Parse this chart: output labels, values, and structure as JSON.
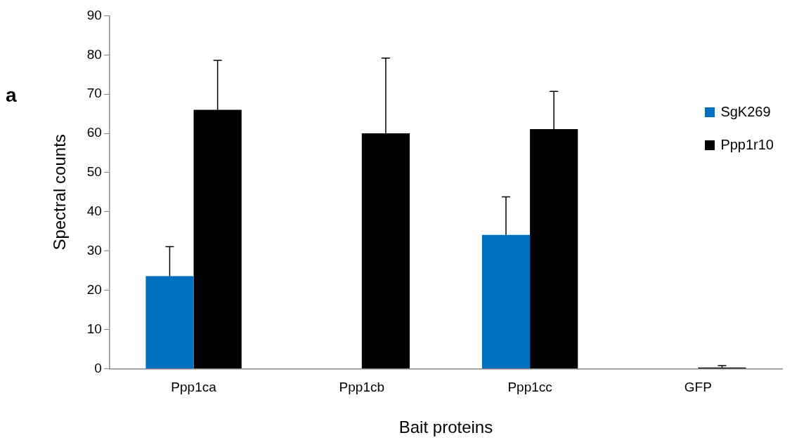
{
  "chart_data": {
    "type": "bar",
    "xlabel": "Bait proteins",
    "ylabel": "Spectral counts",
    "annotations": [
      "a"
    ],
    "categories": [
      "Ppp1ca",
      "Ppp1cb",
      "Ppp1cc",
      "GFP"
    ],
    "series": [
      {
        "name": "SgK269",
        "color": "#0070c0",
        "values": [
          23.6,
          0,
          34.1,
          0
        ],
        "errors": [
          [
            23.6,
            31.1
          ],
          null,
          [
            34.1,
            43.8
          ],
          null
        ]
      },
      {
        "name": "Ppp1r10",
        "color": "#000000",
        "values": [
          66,
          60,
          61.1,
          0.3
        ],
        "errors": [
          [
            66,
            78.6
          ],
          [
            60,
            79.2
          ],
          [
            61.1,
            70.7
          ],
          [
            0.3,
            0.8
          ]
        ]
      }
    ],
    "ylim": [
      0,
      90
    ],
    "yticks": [
      0,
      10,
      20,
      30,
      40,
      50,
      60,
      70,
      80,
      90
    ],
    "grid": false,
    "legend": "top right"
  }
}
